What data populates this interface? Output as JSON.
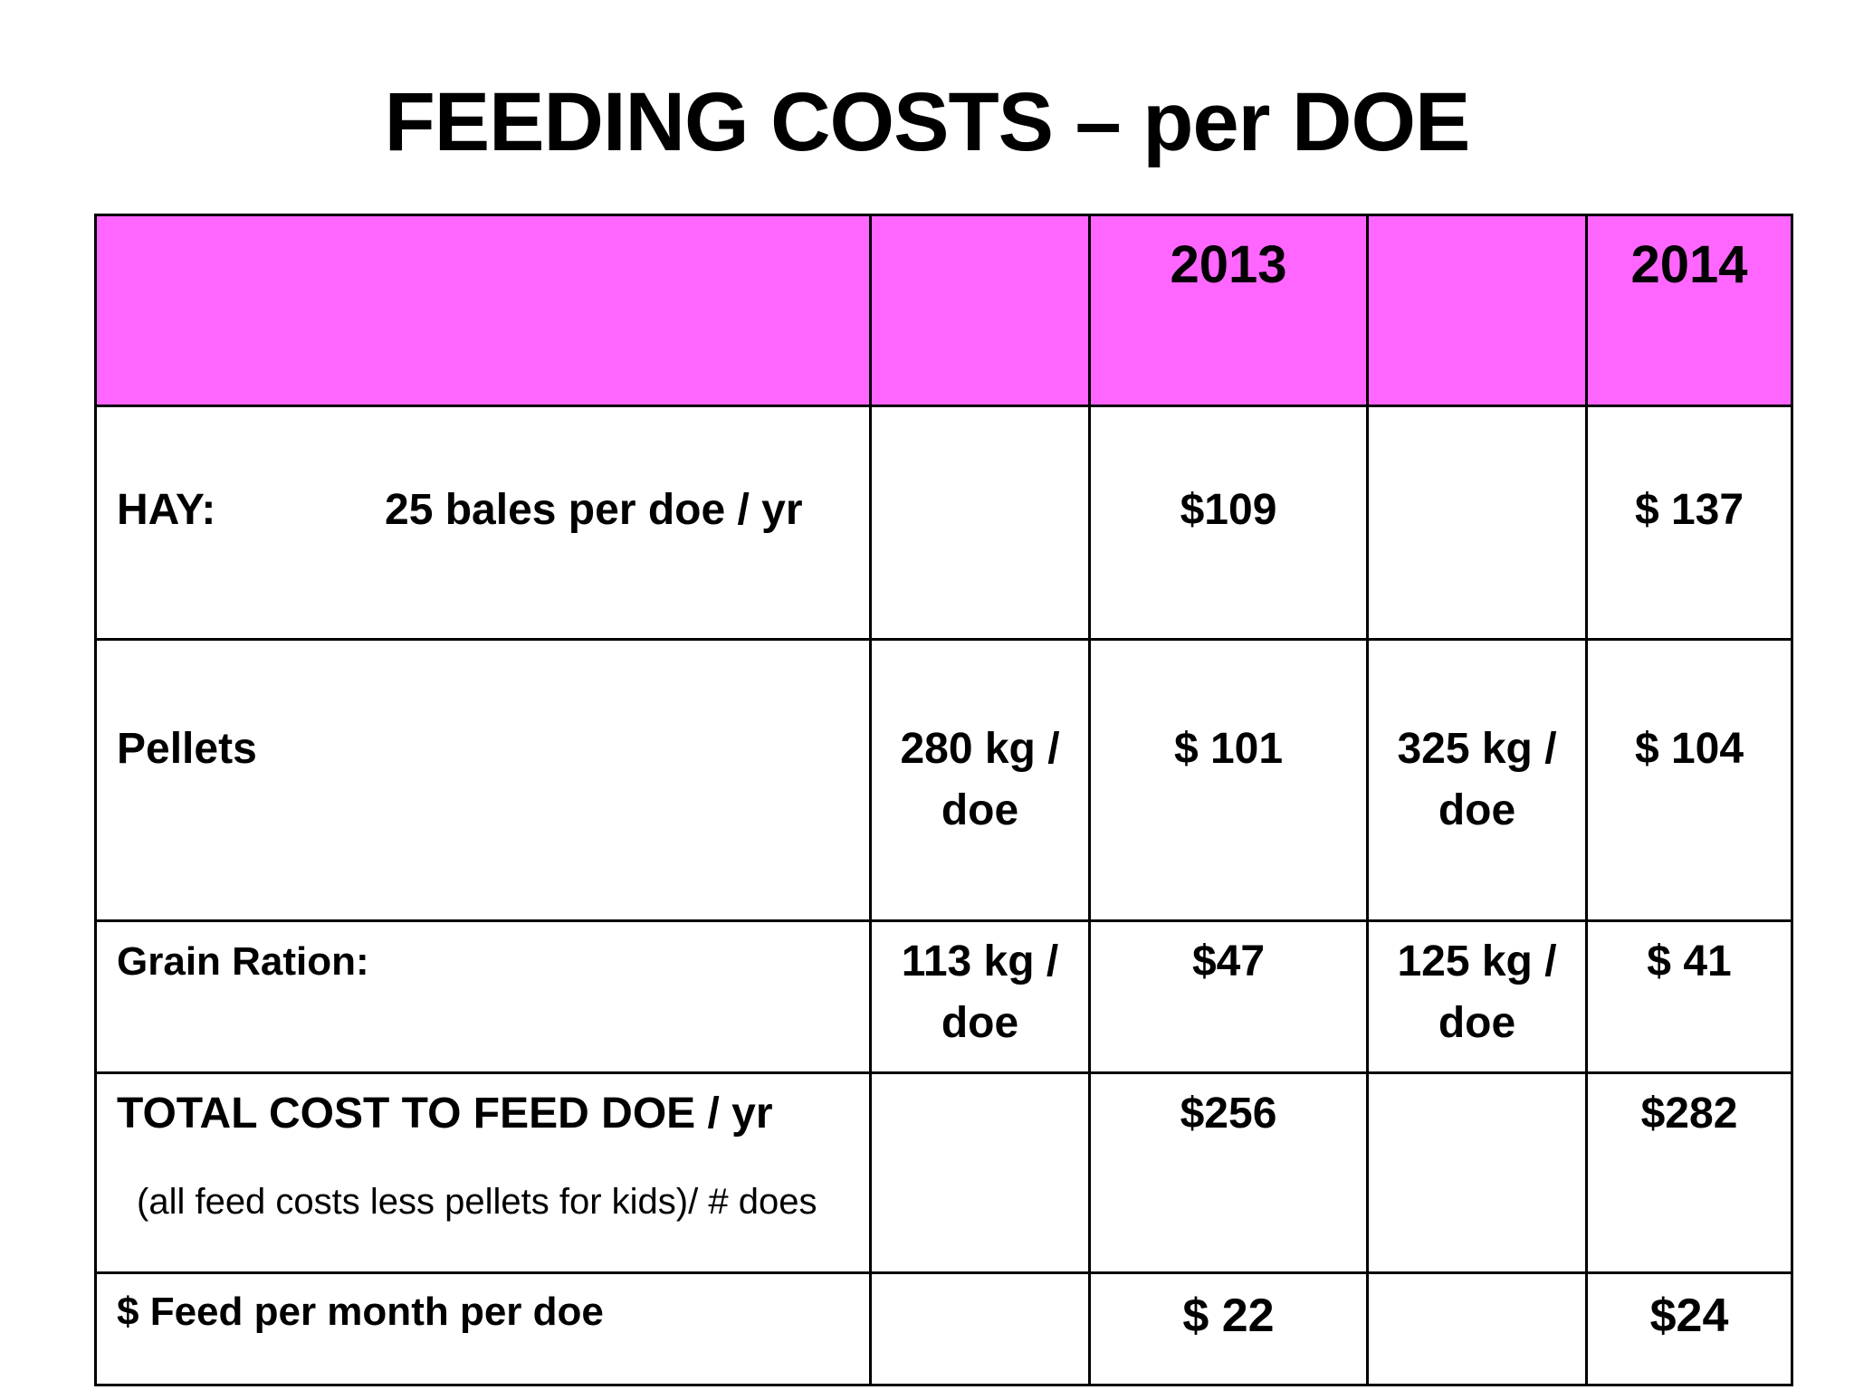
{
  "title": "FEEDING COSTS – per DOE",
  "table": {
    "header": {
      "year_2013": "2013",
      "year_2014": "2014"
    },
    "rows": {
      "hay": {
        "label": "HAY:",
        "detail": "25 bales per doe / yr",
        "cost_2013": "$109",
        "cost_2014": "$ 137"
      },
      "pellets": {
        "label": "Pellets",
        "amount_2013": "280 kg / doe",
        "cost_2013": "$ 101",
        "amount_2014": "325 kg / doe",
        "cost_2014": "$ 104"
      },
      "grain": {
        "label": "Grain Ration:",
        "amount_2013": "113 kg / doe",
        "cost_2013": "$47",
        "amount_2014": "125 kg / doe",
        "cost_2014": "$ 41"
      },
      "total": {
        "label": "TOTAL COST TO FEED DOE / yr",
        "note": "(all feed costs less pellets for kids)/ # does",
        "cost_2013": "$256",
        "cost_2014": "$282"
      },
      "monthly": {
        "label": "$ Feed per month per doe",
        "cost_2013": "$ 22",
        "cost_2014": "$24"
      }
    }
  },
  "colors": {
    "header_background": "#ff66ff",
    "border": "#000000",
    "text": "#000000"
  }
}
